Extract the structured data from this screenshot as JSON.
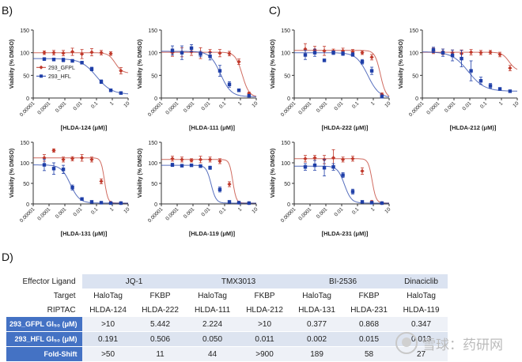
{
  "panels": {
    "b": "B)",
    "c": "C)",
    "d": "D)"
  },
  "chart_data": [
    {
      "type": "scatter",
      "id": "c1",
      "ylabel": "Viability (% DMSO)",
      "xlabel": "[HLDA-124 (μM)]",
      "xscale": "log",
      "xlim": [
        1e-05,
        10
      ],
      "ylim": [
        0,
        150
      ],
      "yticks": [
        0,
        50,
        100,
        150
      ],
      "xticks": [
        "0.00001",
        "0.0001",
        "0.001",
        "0.01",
        "0.1",
        "1",
        "10"
      ],
      "legend": {
        "position": "left-middle",
        "entries": [
          "293_GFPL",
          "293_HFL"
        ]
      },
      "series": [
        {
          "name": "293_GFPL",
          "color": "#c0392b",
          "marker": "diamond",
          "x": [
            5e-05,
            0.0002,
            0.0008,
            0.003,
            0.012,
            0.05,
            0.2,
            0.8,
            3.5
          ],
          "y": [
            100,
            100,
            99,
            102,
            97,
            101,
            100,
            98,
            60
          ],
          "err": [
            4,
            5,
            6,
            8,
            10,
            8,
            5,
            4,
            7
          ],
          "fit": {
            "top": 100,
            "bottom": 55,
            "ic50": 1.5,
            "hill": 2
          }
        },
        {
          "name": "293_HFL",
          "color": "#1f3fa8",
          "marker": "square",
          "x": [
            5e-05,
            0.0002,
            0.0008,
            0.003,
            0.012,
            0.05,
            0.2,
            0.8,
            3.5
          ],
          "y": [
            86,
            85,
            84,
            82,
            78,
            64,
            36,
            17,
            11
          ],
          "err": [
            3,
            3,
            4,
            3,
            3,
            4,
            4,
            3,
            2
          ],
          "fit": {
            "top": 87,
            "bottom": 8,
            "ic50": 0.1,
            "hill": 0.9
          }
        }
      ]
    },
    {
      "type": "scatter",
      "id": "c2",
      "ylabel": "Viability (% DMSO)",
      "xlabel": "[HLDA-111 (μM)]",
      "xscale": "log",
      "xlim": [
        1e-05,
        10
      ],
      "ylim": [
        0,
        150
      ],
      "yticks": [
        0,
        50,
        100,
        150
      ],
      "xticks": [
        "0.00001",
        "0.0001",
        "0.001",
        "0.01",
        "0.1",
        "1",
        "10"
      ],
      "series": [
        {
          "name": "293_GFPL",
          "color": "#c0392b",
          "marker": "diamond",
          "x": [
            5e-05,
            0.0002,
            0.0008,
            0.003,
            0.012,
            0.05,
            0.2,
            0.8,
            3.5
          ],
          "y": [
            100,
            101,
            102,
            99,
            101,
            99,
            98,
            80,
            10
          ],
          "err": [
            8,
            10,
            8,
            12,
            6,
            8,
            5,
            6,
            3
          ],
          "fit": {
            "top": 101,
            "bottom": 2,
            "ic50": 1.3,
            "hill": 2
          }
        },
        {
          "name": "293_HFL",
          "color": "#1f3fa8",
          "marker": "square",
          "x": [
            5e-05,
            0.0002,
            0.0008,
            0.003,
            0.012,
            0.05,
            0.2,
            0.8,
            3.5
          ],
          "y": [
            105,
            100,
            110,
            97,
            92,
            60,
            30,
            17,
            5
          ],
          "err": [
            10,
            15,
            8,
            6,
            8,
            12,
            6,
            3,
            2
          ],
          "fit": {
            "top": 103,
            "bottom": 3,
            "ic50": 0.055,
            "hill": 1.3
          }
        }
      ]
    },
    {
      "type": "scatter",
      "id": "c3",
      "ylabel": "Viability (% DMSO)",
      "xlabel": "[HLDA-222 (μM)]",
      "xscale": "log",
      "xlim": [
        1e-05,
        10
      ],
      "ylim": [
        0,
        150
      ],
      "yticks": [
        0,
        50,
        100,
        150
      ],
      "xticks": [
        "0.00001",
        "0.0001",
        "0.001",
        "0.01",
        "0.1",
        "1",
        "10"
      ],
      "series": [
        {
          "name": "293_GFPL",
          "color": "#c0392b",
          "marker": "diamond",
          "x": [
            5e-05,
            0.0002,
            0.0008,
            0.003,
            0.012,
            0.05,
            0.2,
            0.8,
            3.5
          ],
          "y": [
            108,
            106,
            104,
            103,
            104,
            102,
            100,
            90,
            8
          ],
          "err": [
            12,
            8,
            10,
            5,
            6,
            5,
            4,
            6,
            3
          ],
          "fit": {
            "top": 105,
            "bottom": 0,
            "ic50": 2.8,
            "hill": 2.5
          }
        },
        {
          "name": "293_HFL",
          "color": "#1f3fa8",
          "marker": "square",
          "x": [
            5e-05,
            0.0002,
            0.0008,
            0.003,
            0.012,
            0.05,
            0.2,
            0.8,
            3.5
          ],
          "y": [
            95,
            100,
            83,
            100,
            98,
            96,
            80,
            60,
            3
          ],
          "err": [
            10,
            8,
            3,
            4,
            4,
            4,
            5,
            8,
            2
          ],
          "fit": {
            "top": 100,
            "bottom": 0,
            "ic50": 0.45,
            "hill": 1.2
          }
        }
      ]
    },
    {
      "type": "scatter",
      "id": "c4",
      "ylabel": "Viability (% DMSO)",
      "xlabel": "[HLDA-212 (μM)]",
      "xscale": "log",
      "xlim": [
        1e-05,
        10
      ],
      "ylim": [
        0,
        150
      ],
      "yticks": [
        0,
        50,
        100,
        150
      ],
      "xticks": [
        "0.00001",
        "0.0001",
        "0.001",
        "0.01",
        "0.1",
        "1",
        "10"
      ],
      "series": [
        {
          "name": "293_GFPL",
          "color": "#c0392b",
          "marker": "diamond",
          "x": [
            5e-05,
            0.0002,
            0.0008,
            0.003,
            0.012,
            0.05,
            0.2,
            0.8,
            3.5
          ],
          "y": [
            104,
            102,
            100,
            98,
            101,
            100,
            101,
            96,
            66
          ],
          "err": [
            6,
            6,
            6,
            8,
            6,
            5,
            4,
            5,
            6
          ],
          "fit": {
            "top": 101,
            "bottom": 60,
            "ic50": 3,
            "hill": 2
          }
        },
        {
          "name": "293_HFL",
          "color": "#1f3fa8",
          "marker": "square",
          "x": [
            5e-05,
            0.0002,
            0.0008,
            0.003,
            0.012,
            0.05,
            0.2,
            0.8,
            3.5
          ],
          "y": [
            106,
            100,
            94,
            87,
            60,
            38,
            27,
            20,
            15
          ],
          "err": [
            6,
            8,
            12,
            18,
            22,
            8,
            5,
            3,
            2
          ],
          "fit": {
            "top": 102,
            "bottom": 15,
            "ic50": 0.008,
            "hill": 0.85
          }
        }
      ]
    },
    {
      "type": "scatter",
      "id": "c5",
      "ylabel": "Viability (% DMSO)",
      "xlabel": "[HLDA-131 (μM)]",
      "xscale": "log",
      "xlim": [
        1e-05,
        10
      ],
      "ylim": [
        0,
        150
      ],
      "yticks": [
        0,
        50,
        100,
        150
      ],
      "xticks": [
        "0.00001",
        "0.0001",
        "0.001",
        "0.01",
        "0.1",
        "1",
        "10"
      ],
      "series": [
        {
          "name": "293_GFPL",
          "color": "#c0392b",
          "marker": "diamond",
          "x": [
            5e-05,
            0.0002,
            0.0008,
            0.003,
            0.012,
            0.05,
            0.2,
            0.8,
            3.5
          ],
          "y": [
            112,
            130,
            108,
            110,
            112,
            108,
            55,
            3,
            2
          ],
          "err": [
            8,
            4,
            6,
            5,
            8,
            6,
            6,
            2,
            2
          ],
          "fit": {
            "top": 112,
            "bottom": 2,
            "ic50": 0.32,
            "hill": 4
          }
        },
        {
          "name": "293_HFL",
          "color": "#1f3fa8",
          "marker": "square",
          "x": [
            5e-05,
            0.0002,
            0.0008,
            0.003,
            0.012,
            0.05,
            0.2,
            0.8,
            3.5
          ],
          "y": [
            95,
            86,
            84,
            40,
            12,
            5,
            3,
            2,
            2
          ],
          "err": [
            14,
            14,
            10,
            6,
            3,
            2,
            2,
            1,
            1
          ],
          "fit": {
            "top": 95,
            "bottom": 2,
            "ic50": 0.0022,
            "hill": 1.5
          }
        }
      ]
    },
    {
      "type": "scatter",
      "id": "c6",
      "ylabel": "Viability (% DMSO)",
      "xlabel": "[HLDA-119 (μM)]",
      "xscale": "log",
      "xlim": [
        1e-05,
        10
      ],
      "ylim": [
        0,
        150
      ],
      "yticks": [
        0,
        50,
        100,
        150
      ],
      "xticks": [
        "0.00001",
        "0.0001",
        "0.001",
        "0.01",
        "0.1",
        "1",
        "10"
      ],
      "series": [
        {
          "name": "293_GFPL",
          "color": "#c0392b",
          "marker": "diamond",
          "x": [
            5e-05,
            0.0002,
            0.0008,
            0.003,
            0.012,
            0.05,
            0.2,
            0.8,
            3.5
          ],
          "y": [
            110,
            108,
            106,
            108,
            108,
            104,
            48,
            3,
            2
          ],
          "err": [
            6,
            6,
            4,
            8,
            6,
            6,
            6,
            2,
            2
          ],
          "fit": {
            "top": 108,
            "bottom": 2,
            "ic50": 0.33,
            "hill": 4
          }
        },
        {
          "name": "293_HFL",
          "color": "#1f3fa8",
          "marker": "square",
          "x": [
            5e-05,
            0.0002,
            0.0008,
            0.003,
            0.012,
            0.05,
            0.2,
            0.8,
            3.5
          ],
          "y": [
            95,
            93,
            94,
            92,
            88,
            35,
            5,
            3,
            2
          ],
          "err": [
            4,
            3,
            3,
            3,
            4,
            6,
            2,
            1,
            1
          ],
          "fit": {
            "top": 94,
            "bottom": 2,
            "ic50": 0.014,
            "hill": 2.8
          }
        }
      ]
    },
    {
      "type": "scatter",
      "id": "c7",
      "ylabel": "Viability (% DMSO)",
      "xlabel": "[HLDA-231 (μM)]",
      "xscale": "log",
      "xlim": [
        1e-05,
        10
      ],
      "ylim": [
        0,
        150
      ],
      "yticks": [
        0,
        50,
        100,
        150
      ],
      "xticks": [
        "0.00001",
        "0.0001",
        "0.001",
        "0.01",
        "0.1",
        "1",
        "10"
      ],
      "series": [
        {
          "name": "293_GFPL",
          "color": "#c0392b",
          "marker": "diamond",
          "x": [
            5e-05,
            0.0002,
            0.0008,
            0.003,
            0.012,
            0.05,
            0.2,
            0.8,
            3.5
          ],
          "y": [
            110,
            112,
            108,
            112,
            108,
            110,
            80,
            5,
            2
          ],
          "err": [
            8,
            6,
            10,
            20,
            6,
            6,
            8,
            3,
            2
          ],
          "fit": {
            "top": 110,
            "bottom": 2,
            "ic50": 0.85,
            "hill": 3.5
          }
        },
        {
          "name": "293_HFL",
          "color": "#1f3fa8",
          "marker": "square",
          "x": [
            5e-05,
            0.0002,
            0.0008,
            0.003,
            0.012,
            0.05,
            0.2,
            0.8,
            3.5
          ],
          "y": [
            90,
            94,
            88,
            90,
            70,
            30,
            5,
            3,
            2
          ],
          "err": [
            8,
            12,
            20,
            8,
            6,
            6,
            2,
            1,
            1
          ],
          "fit": {
            "top": 92,
            "bottom": 2,
            "ic50": 0.015,
            "hill": 2
          }
        }
      ]
    }
  ],
  "table": {
    "rows": {
      "ligand": "Effector Ligand",
      "target": "Target",
      "riptac": "RIPTAC",
      "gfpl": "293_GFPL GI₅₀ (μM)",
      "hfl": "293_HFL GI₅₀ (μM)",
      "fold": "Fold-Shift"
    },
    "ligands": [
      "JQ-1",
      "TMX3013",
      "BI-2536",
      "Dinaciclib"
    ],
    "targets": [
      "HaloTag",
      "FKBP",
      "HaloTag",
      "FKBP",
      "HaloTag",
      "FKBP",
      "HaloTag"
    ],
    "riptacs": [
      "HLDA-124",
      "HLDA-222",
      "HLDA-111",
      "HLDA-212",
      "HLDA-131",
      "HLDA-231",
      "HLDA-119"
    ],
    "gfpl_values": [
      ">10",
      "5.442",
      "2.224",
      ">10",
      "0.377",
      "0.868",
      "0.347"
    ],
    "hfl_values": [
      "0.191",
      "0.506",
      "0.050",
      "0.011",
      "0.002",
      "0.015",
      "0.013"
    ],
    "fold_values": [
      ">50",
      "11",
      "44",
      ">900",
      "189",
      "58",
      "27"
    ]
  },
  "watermark": {
    "text": "雪球：药研网"
  }
}
